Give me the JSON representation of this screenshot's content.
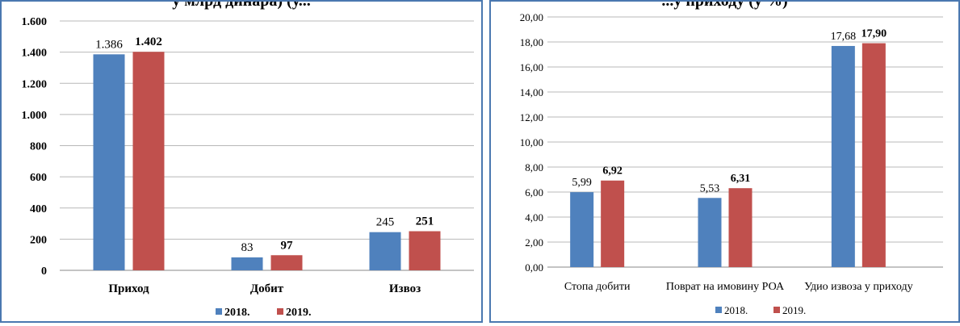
{
  "chart_data": [
    {
      "type": "bar",
      "title": "",
      "clipped_title_fragment": "у млрд динара) (у...",
      "categories": [
        "Приход",
        "Добит",
        "Извоз"
      ],
      "series": [
        {
          "name": "2018.",
          "values": [
            1386,
            83,
            245
          ],
          "labels": [
            "1.386",
            "83",
            "245"
          ],
          "color": "#4f81bd"
        },
        {
          "name": "2019.",
          "values": [
            1402,
            97,
            251
          ],
          "labels": [
            "1.402",
            "97",
            "251"
          ],
          "color": "#c0504d"
        }
      ],
      "ylim": [
        0,
        1600
      ],
      "yticks": [
        0,
        200,
        400,
        600,
        800,
        1000,
        1200,
        1400,
        1600
      ],
      "ytick_labels": [
        "0",
        "200",
        "400",
        "600",
        "800",
        "1.000",
        "1.200",
        "1.400",
        "1.600"
      ],
      "grid": true,
      "legend": "bottom",
      "xlabel": "",
      "ylabel": ""
    },
    {
      "type": "bar",
      "title": "",
      "clipped_title_fragment": "...у приходу (у %)",
      "categories": [
        "Стопа добити",
        "Поврат на имовину РОА",
        "Удио извоза у приходу"
      ],
      "series": [
        {
          "name": "2018.",
          "values": [
            5.99,
            5.53,
            17.68
          ],
          "labels": [
            "5,99",
            "5,53",
            "17,68"
          ],
          "color": "#4f81bd"
        },
        {
          "name": "2019.",
          "values": [
            6.92,
            6.31,
            17.9
          ],
          "labels": [
            "6,92",
            "6,31",
            "17,90"
          ],
          "color": "#c0504d"
        }
      ],
      "ylim": [
        0,
        20
      ],
      "yticks": [
        0,
        2,
        4,
        6,
        8,
        10,
        12,
        14,
        16,
        18,
        20
      ],
      "ytick_labels": [
        "0,00",
        "2,00",
        "4,00",
        "6,00",
        "8,00",
        "10,00",
        "12,00",
        "14,00",
        "16,00",
        "18,00",
        "20,00"
      ],
      "grid": true,
      "legend": "bottom",
      "xlabel": "",
      "ylabel": ""
    }
  ]
}
